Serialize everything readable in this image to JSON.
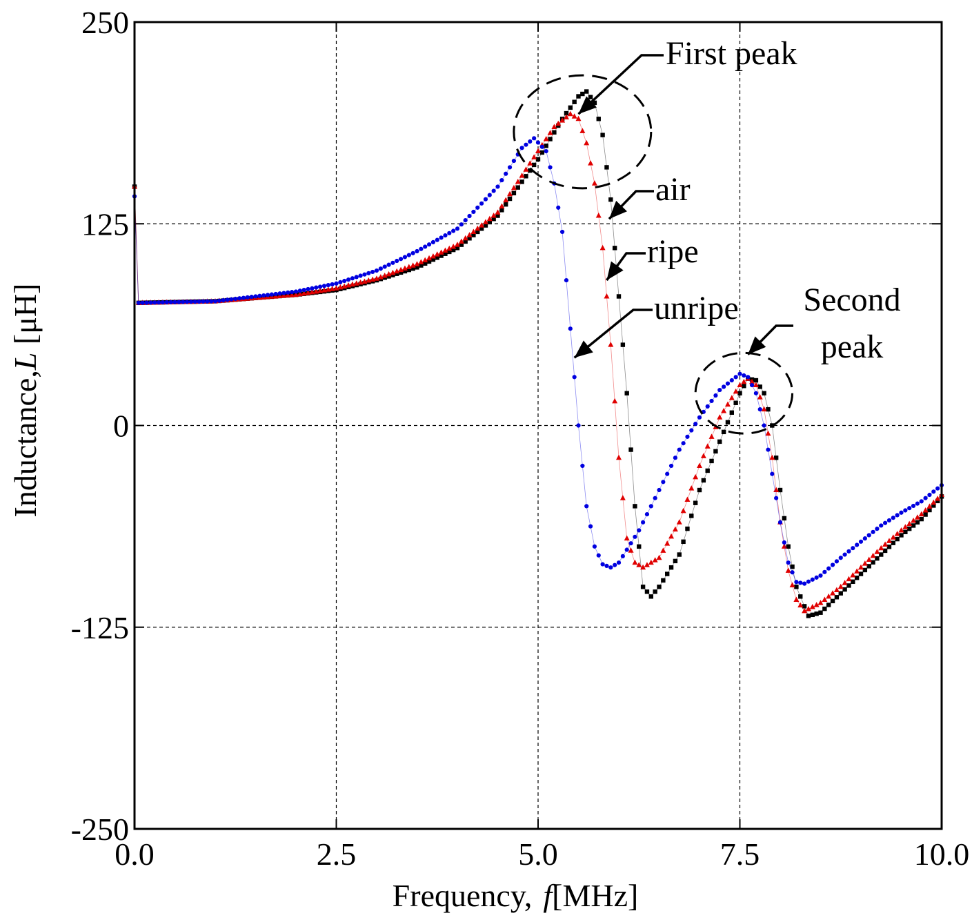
{
  "chart_data": {
    "type": "scatter",
    "title": "",
    "xlabel": "Frequency,  f[MHz]",
    "xlabel_prefix": "Frequency,",
    "xlabel_var": "f",
    "xlabel_unit": "[MHz]",
    "ylabel": "Inductance,L [μH]",
    "ylabel_prefix": "Inductance,",
    "ylabel_var": "L",
    "ylabel_unit": " [μH]",
    "xlim": [
      0.0,
      10.0
    ],
    "ylim": [
      -250,
      250
    ],
    "xticks": [
      0.0,
      2.5,
      5.0,
      7.5,
      10.0
    ],
    "xtick_labels": [
      "0.0",
      "2.5",
      "5.0",
      "7.5",
      "10.0"
    ],
    "yticks": [
      -250,
      -125,
      0,
      125,
      250
    ],
    "ytick_labels": [
      "-250",
      "-125",
      "0",
      "125",
      "250"
    ],
    "grid": true,
    "series": [
      {
        "name": "air",
        "marker": "square",
        "color": "#000000",
        "points": [
          [
            0.0,
            148
          ],
          [
            0.05,
            76
          ],
          [
            1.0,
            77
          ],
          [
            2.0,
            81
          ],
          [
            2.5,
            84
          ],
          [
            3.0,
            90
          ],
          [
            3.5,
            98
          ],
          [
            4.0,
            110
          ],
          [
            4.5,
            130
          ],
          [
            5.0,
            165
          ],
          [
            5.3,
            190
          ],
          [
            5.5,
            204
          ],
          [
            5.6,
            207
          ],
          [
            5.7,
            200
          ],
          [
            5.8,
            180
          ],
          [
            5.9,
            140
          ],
          [
            6.0,
            80
          ],
          [
            6.1,
            20
          ],
          [
            6.2,
            -50
          ],
          [
            6.3,
            -100
          ],
          [
            6.4,
            -106
          ],
          [
            6.5,
            -100
          ],
          [
            6.75,
            -80
          ],
          [
            7.0,
            -40
          ],
          [
            7.25,
            -10
          ],
          [
            7.5,
            20
          ],
          [
            7.6,
            29
          ],
          [
            7.7,
            28
          ],
          [
            7.8,
            20
          ],
          [
            7.9,
            0
          ],
          [
            8.0,
            -40
          ],
          [
            8.1,
            -75
          ],
          [
            8.2,
            -100
          ],
          [
            8.35,
            -118
          ],
          [
            8.5,
            -116
          ],
          [
            8.75,
            -104
          ],
          [
            9.0,
            -92
          ],
          [
            9.25,
            -80
          ],
          [
            9.5,
            -68
          ],
          [
            9.75,
            -58
          ],
          [
            10.0,
            -44
          ]
        ]
      },
      {
        "name": "ripe",
        "marker": "triangle",
        "color": "#e00000",
        "points": [
          [
            0.0,
            148
          ],
          [
            0.05,
            76
          ],
          [
            1.0,
            77
          ],
          [
            2.0,
            81
          ],
          [
            2.5,
            85
          ],
          [
            3.0,
            91
          ],
          [
            3.5,
            100
          ],
          [
            4.0,
            112
          ],
          [
            4.5,
            132
          ],
          [
            5.0,
            170
          ],
          [
            5.2,
            185
          ],
          [
            5.4,
            193
          ],
          [
            5.5,
            190
          ],
          [
            5.6,
            175
          ],
          [
            5.7,
            150
          ],
          [
            5.8,
            110
          ],
          [
            5.9,
            50
          ],
          [
            6.0,
            -20
          ],
          [
            6.1,
            -70
          ],
          [
            6.2,
            -85
          ],
          [
            6.3,
            -88
          ],
          [
            6.5,
            -82
          ],
          [
            6.75,
            -60
          ],
          [
            7.0,
            -25
          ],
          [
            7.25,
            5
          ],
          [
            7.5,
            25
          ],
          [
            7.6,
            29
          ],
          [
            7.7,
            25
          ],
          [
            7.8,
            10
          ],
          [
            7.9,
            -20
          ],
          [
            8.0,
            -60
          ],
          [
            8.1,
            -90
          ],
          [
            8.2,
            -108
          ],
          [
            8.3,
            -115
          ],
          [
            8.5,
            -110
          ],
          [
            8.75,
            -100
          ],
          [
            9.0,
            -88
          ],
          [
            9.25,
            -76
          ],
          [
            9.5,
            -65
          ],
          [
            9.75,
            -55
          ],
          [
            10.0,
            -43
          ]
        ]
      },
      {
        "name": "unripe",
        "marker": "circle",
        "color": "#0000e0",
        "points": [
          [
            0.0,
            142
          ],
          [
            0.05,
            76
          ],
          [
            1.0,
            77
          ],
          [
            2.0,
            83
          ],
          [
            2.5,
            88
          ],
          [
            3.0,
            96
          ],
          [
            3.5,
            108
          ],
          [
            4.0,
            122
          ],
          [
            4.5,
            148
          ],
          [
            4.8,
            172
          ],
          [
            4.95,
            178
          ],
          [
            5.1,
            170
          ],
          [
            5.2,
            150
          ],
          [
            5.3,
            120
          ],
          [
            5.4,
            60
          ],
          [
            5.5,
            0
          ],
          [
            5.6,
            -50
          ],
          [
            5.7,
            -75
          ],
          [
            5.8,
            -86
          ],
          [
            5.9,
            -88
          ],
          [
            6.0,
            -85
          ],
          [
            6.25,
            -65
          ],
          [
            6.5,
            -40
          ],
          [
            6.75,
            -15
          ],
          [
            7.0,
            5
          ],
          [
            7.25,
            22
          ],
          [
            7.5,
            32
          ],
          [
            7.6,
            30
          ],
          [
            7.7,
            20
          ],
          [
            7.8,
            0
          ],
          [
            7.9,
            -30
          ],
          [
            8.0,
            -60
          ],
          [
            8.1,
            -85
          ],
          [
            8.2,
            -97
          ],
          [
            8.3,
            -98
          ],
          [
            8.5,
            -93
          ],
          [
            8.75,
            -82
          ],
          [
            9.0,
            -72
          ],
          [
            9.25,
            -62
          ],
          [
            9.5,
            -54
          ],
          [
            9.75,
            -47
          ],
          [
            10.0,
            -37
          ]
        ]
      }
    ],
    "annotations": [
      {
        "text": "First peak",
        "target": [
          5.5,
          193
        ]
      },
      {
        "text": "air",
        "target": [
          5.88,
          128
        ]
      },
      {
        "text": "ripe",
        "target": [
          5.85,
          90
        ]
      },
      {
        "text": "unripe",
        "target": [
          5.45,
          42
        ]
      },
      {
        "text": "Second",
        "target": [
          7.6,
          44
        ]
      },
      {
        "text": "peak",
        "target": [
          7.6,
          44
        ]
      }
    ],
    "highlight_regions": [
      {
        "label": "First peak",
        "center": [
          5.55,
          182
        ],
        "radius": [
          0.85,
          35
        ]
      },
      {
        "label": "Second peak",
        "center": [
          7.55,
          20
        ],
        "radius": [
          0.6,
          25
        ]
      }
    ]
  }
}
